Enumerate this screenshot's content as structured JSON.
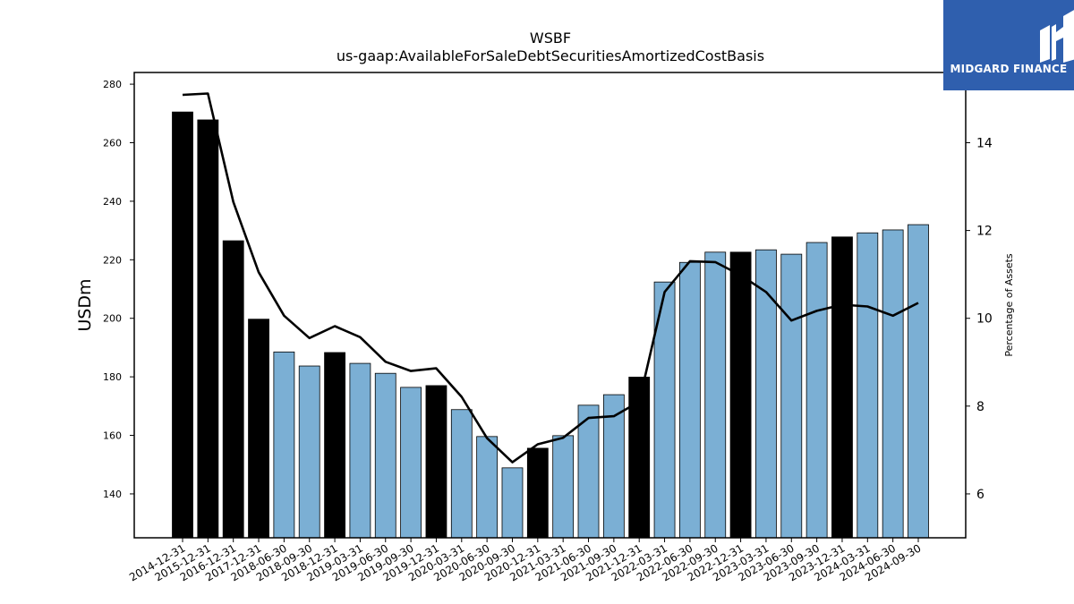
{
  "chart_data": {
    "type": "bar",
    "title": "WSBF",
    "subtitle": "us-gaap:AvailableForSaleDebtSecuritiesAmortizedCostBasis",
    "ylabel": "USDm",
    "y2label": "Percentage of Assets",
    "ylim": [
      125,
      284
    ],
    "y2lim": [
      5.0,
      15.6
    ],
    "yticks": [
      "140",
      "160",
      "180",
      "200",
      "220",
      "240",
      "260",
      "280"
    ],
    "y2ticks": [
      "6",
      "8",
      "10",
      "12",
      "14"
    ],
    "grid": false,
    "categories": [
      "2014-12-31",
      "2015-12-31",
      "2016-12-31",
      "2017-12-31",
      "2018-06-30",
      "2018-09-30",
      "2018-12-31",
      "2019-03-31",
      "2019-06-30",
      "2019-09-30",
      "2019-12-31",
      "2020-03-31",
      "2020-06-30",
      "2020-09-30",
      "2020-12-31",
      "2021-03-31",
      "2021-06-30",
      "2021-09-30",
      "2021-12-31",
      "2022-03-31",
      "2022-06-30",
      "2022-09-30",
      "2022-12-31",
      "2023-03-31",
      "2023-06-30",
      "2023-09-30",
      "2023-12-31",
      "2024-03-31",
      "2024-06-30",
      "2024-09-30"
    ],
    "series": [
      {
        "kind": "bar",
        "values": [
          270.5,
          267.8,
          226.5,
          199.7,
          188.5,
          183.7,
          188.3,
          184.6,
          181.2,
          176.4,
          177.0,
          168.8,
          159.6,
          148.9,
          155.6,
          159.9,
          170.3,
          173.9,
          179.9,
          212.4,
          219.1,
          222.6,
          222.6,
          223.4,
          221.9,
          225.9,
          227.8,
          229.2,
          230.2,
          232.0
        ],
        "highlight": [
          true,
          true,
          true,
          true,
          false,
          false,
          true,
          false,
          false,
          false,
          true,
          false,
          false,
          false,
          true,
          false,
          false,
          false,
          true,
          false,
          false,
          false,
          true,
          false,
          false,
          false,
          true,
          false,
          false,
          false
        ]
      },
      {
        "kind": "line",
        "axis": "right",
        "values": [
          15.09,
          15.12,
          12.65,
          11.05,
          10.06,
          9.55,
          9.82,
          9.57,
          9.01,
          8.8,
          8.86,
          8.21,
          7.27,
          6.72,
          7.13,
          7.28,
          7.73,
          7.77,
          8.1,
          10.6,
          11.3,
          11.28,
          10.98,
          10.6,
          9.95,
          10.17,
          10.31,
          10.27,
          10.06,
          10.35
        ]
      }
    ],
    "colors": {
      "bar": "#7bafd4",
      "highlight": "#000000",
      "line": "#000000"
    }
  },
  "logo": {
    "text": "MIDGARD FINANCE",
    "bg": "#2f5fae"
  }
}
